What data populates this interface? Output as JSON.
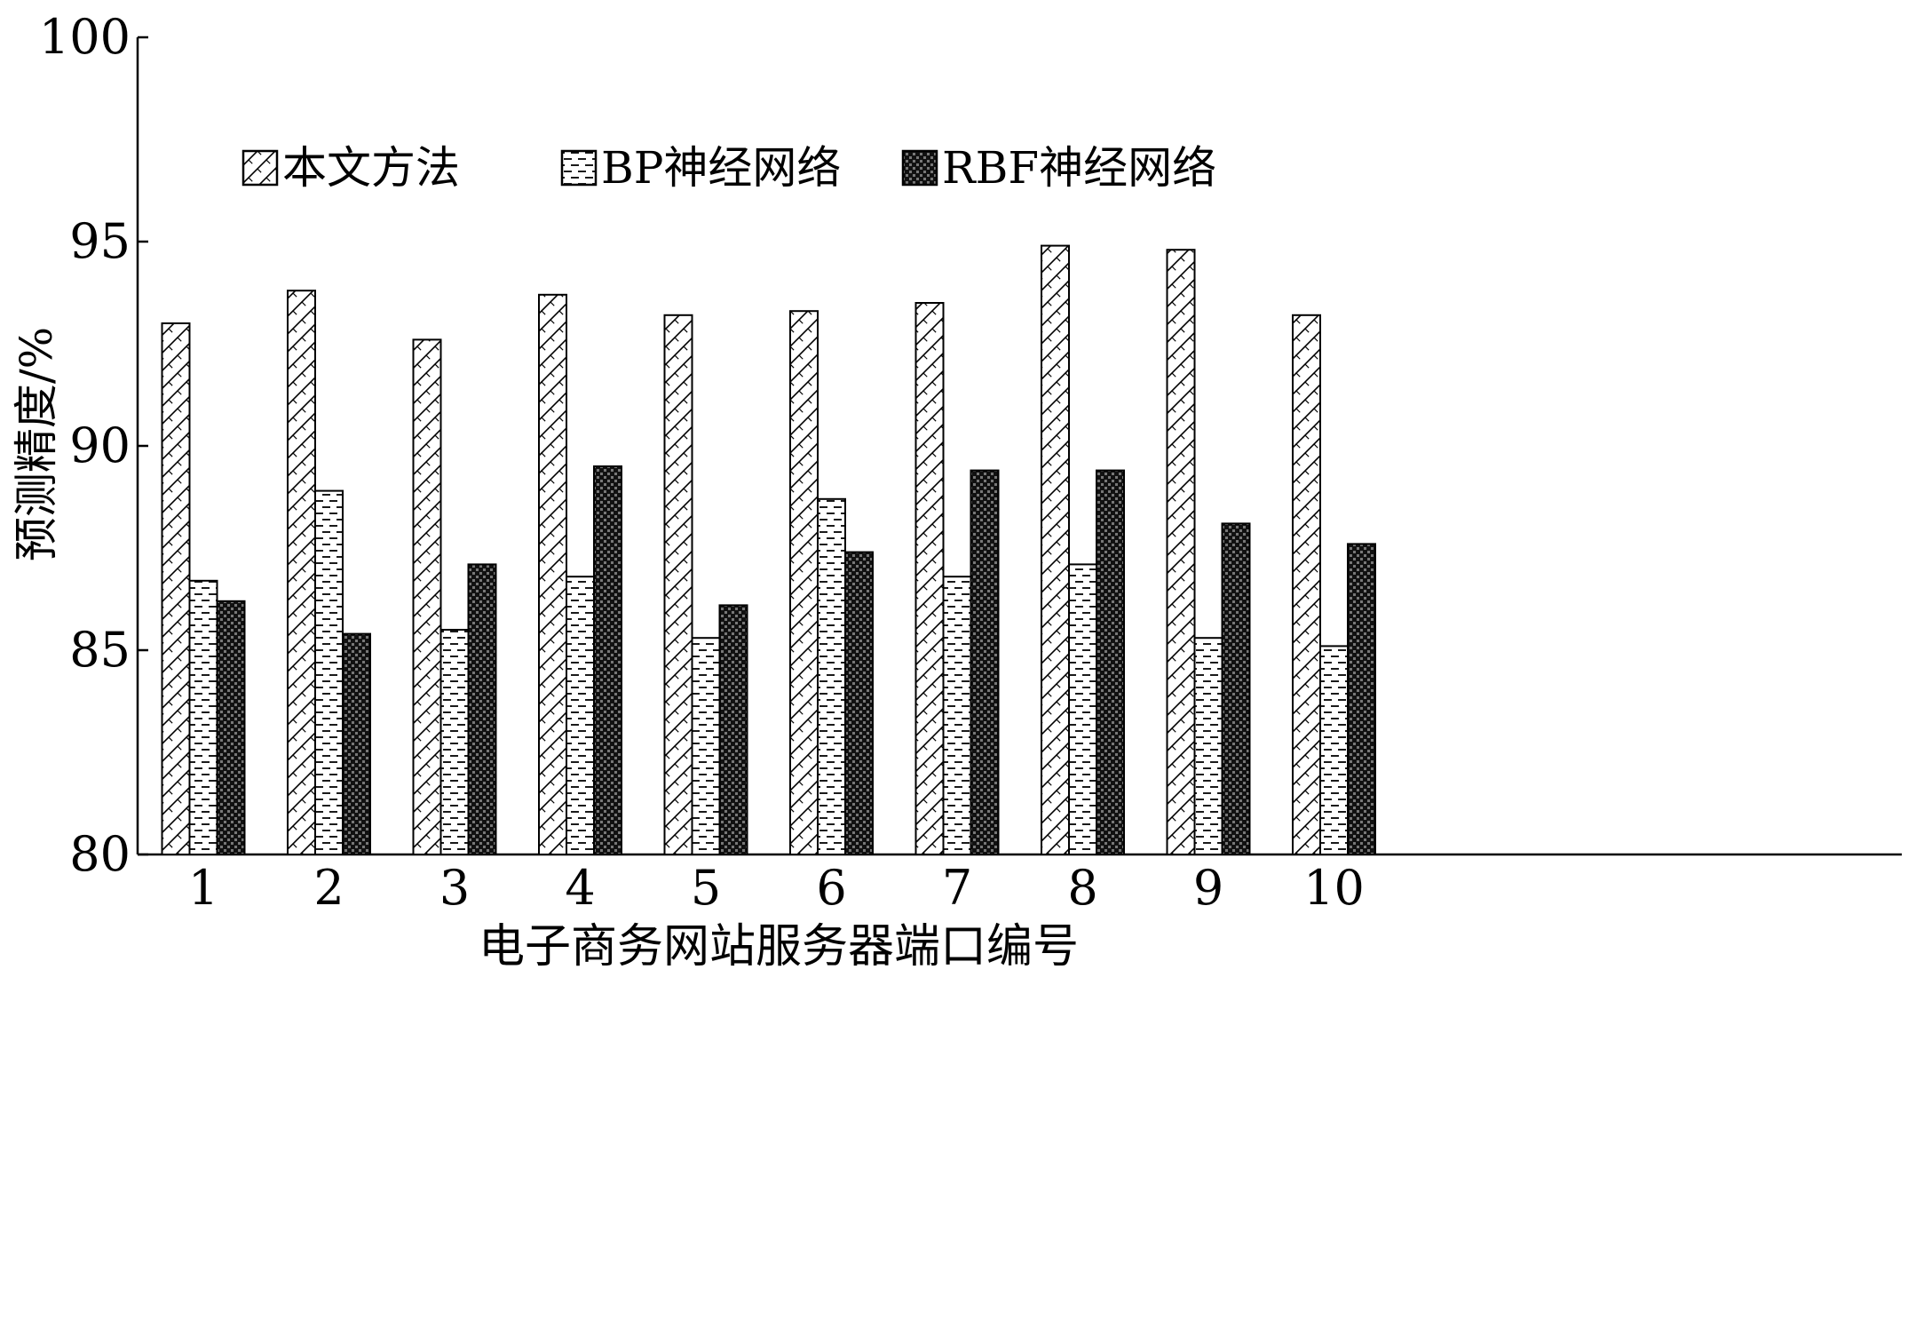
{
  "chart_data": {
    "type": "bar",
    "xlabel": "电子商务网站服务器端口编号",
    "ylabel": "预测精度/%",
    "ylim": [
      80,
      100
    ],
    "yticks": [
      80,
      85,
      90,
      95,
      100
    ],
    "categories": [
      "1",
      "2",
      "3",
      "4",
      "5",
      "6",
      "7",
      "8",
      "9",
      "10"
    ],
    "legend_position": "top",
    "series": [
      {
        "name": "本文方法",
        "pattern": "diagonal-hatch",
        "values": [
          93.0,
          93.8,
          92.6,
          93.7,
          93.2,
          93.3,
          93.5,
          94.9,
          94.8,
          93.2
        ]
      },
      {
        "name": "BP神经网络",
        "pattern": "dash-dots",
        "values": [
          86.7,
          88.9,
          85.5,
          86.8,
          85.3,
          88.7,
          86.8,
          87.1,
          85.3,
          85.1
        ]
      },
      {
        "name": "RBF神经网络",
        "pattern": "dark-checker",
        "values": [
          86.2,
          85.4,
          87.1,
          89.5,
          86.1,
          87.4,
          89.4,
          89.4,
          88.1,
          87.6
        ]
      }
    ],
    "colors": {
      "bar_stroke": "#000000",
      "dark_fill": "#111111",
      "light_fill": "#ffffff"
    }
  }
}
